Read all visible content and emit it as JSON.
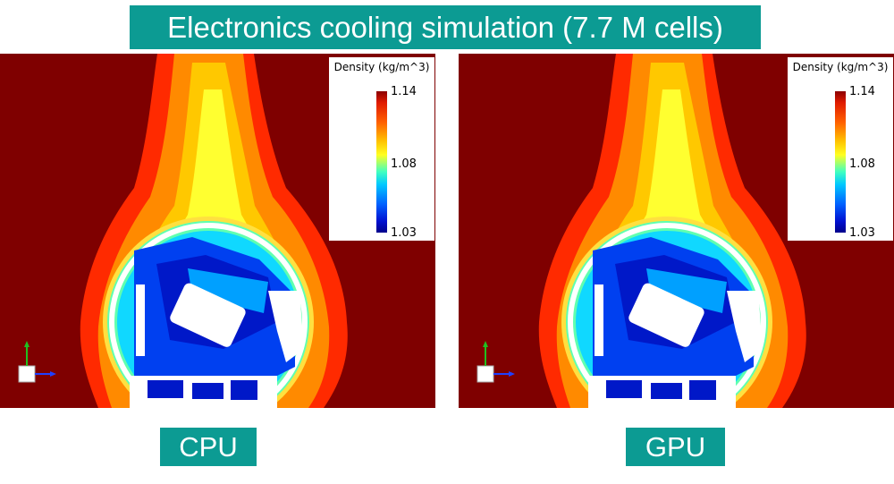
{
  "title": "Electronics cooling simulation (7.7 M cells)",
  "panels": [
    {
      "label": "CPU",
      "legend": {
        "title": "Density (kg/m^3)",
        "max": "1.14",
        "mid": "1.08",
        "min": "1.03"
      }
    },
    {
      "label": "GPU",
      "legend": {
        "title": "Density (kg/m^3)",
        "max": "1.14",
        "mid": "1.08",
        "min": "1.03"
      }
    }
  ],
  "colors": {
    "banner": "#0c9b93",
    "field_high": "#7f0000",
    "field_low": "#0010d0"
  }
}
